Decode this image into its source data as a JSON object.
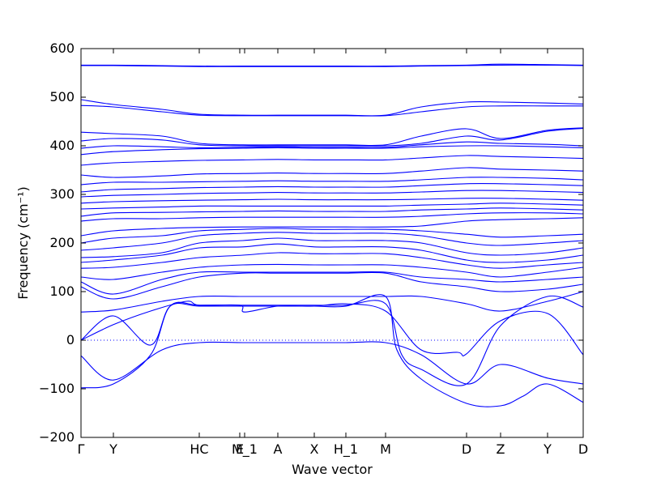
{
  "chart_data": {
    "type": "line",
    "title": "",
    "xlabel": "Wave vector",
    "ylabel": "Frequency (cm⁻¹)",
    "ylim": [
      -200,
      600
    ],
    "yticks": [
      -200,
      -100,
      0,
      100,
      200,
      300,
      400,
      500,
      600
    ],
    "xlim": [
      0,
      620
    ],
    "xticks": [
      {
        "label": "Γ",
        "x": 0
      },
      {
        "label": "Y",
        "x": 40
      },
      {
        "label": "HC",
        "x": 146
      },
      {
        "label": "E",
        "x": 196
      },
      {
        "label": "M_1",
        "x": 202
      },
      {
        "label": "A",
        "x": 243
      },
      {
        "label": "X",
        "x": 288
      },
      {
        "label": "H_1",
        "x": 327
      },
      {
        "label": "M",
        "x": 376
      },
      {
        "label": "D",
        "x": 476
      },
      {
        "label": "Z",
        "x": 518
      },
      {
        "label": "Y",
        "x": 576
      },
      {
        "label": "D",
        "x": 620
      }
    ],
    "zero_line": 0,
    "line_color": "#0000ff",
    "series": [
      {
        "x": [
          0,
          40,
          100,
          146,
          200,
          243,
          288,
          327,
          376,
          420,
          476,
          518,
          576,
          620
        ],
        "y": [
          -32,
          -82,
          -20,
          -5,
          -5,
          -5,
          -5,
          -5,
          -5,
          -30,
          -90,
          -50,
          -78,
          -90
        ]
      },
      {
        "x": [
          0,
          40,
          86,
          110,
          146,
          200,
          243,
          288,
          327,
          376,
          390,
          420,
          476,
          518,
          546,
          576,
          620
        ],
        "y": [
          0,
          50,
          -10,
          70,
          70,
          70,
          70,
          70,
          70,
          90,
          -20,
          -80,
          -130,
          -135,
          -115,
          -90,
          -128
        ]
      },
      {
        "x": [
          0,
          40,
          86,
          110,
          146,
          200,
          243,
          288,
          327,
          376,
          396,
          420,
          476,
          518,
          576,
          620
        ],
        "y": [
          -98,
          -90,
          -30,
          70,
          72,
          72,
          72,
          72,
          72,
          75,
          -30,
          -60,
          -90,
          30,
          90,
          68
        ]
      },
      {
        "x": [
          0,
          40,
          86,
          130,
          146,
          196,
          202,
          243,
          288,
          327,
          376,
          420,
          465,
          476,
          518,
          576,
          620
        ],
        "y": [
          0,
          32,
          60,
          80,
          72,
          72,
          58,
          70,
          70,
          75,
          60,
          -20,
          -25,
          -28,
          40,
          55,
          -30
        ]
      },
      {
        "x": [
          0,
          40,
          100,
          146,
          200,
          243,
          288,
          327,
          376,
          420,
          476,
          518,
          576,
          620
        ],
        "y": [
          58,
          62,
          80,
          90,
          90,
          90,
          90,
          90,
          90,
          90,
          75,
          60,
          80,
          100
        ]
      },
      {
        "x": [
          0,
          40,
          100,
          146,
          200,
          243,
          288,
          327,
          376,
          420,
          476,
          518,
          576,
          620
        ],
        "y": [
          110,
          85,
          110,
          130,
          138,
          138,
          138,
          138,
          138,
          120,
          110,
          100,
          105,
          115
        ]
      },
      {
        "x": [
          0,
          40,
          100,
          146,
          200,
          243,
          288,
          327,
          376,
          420,
          476,
          518,
          576,
          620
        ],
        "y": [
          120,
          95,
          125,
          140,
          140,
          140,
          140,
          140,
          140,
          130,
          125,
          120,
          125,
          130
        ]
      },
      {
        "x": [
          0,
          40,
          100,
          146,
          200,
          243,
          288,
          327,
          376,
          420,
          476,
          518,
          576,
          620
        ],
        "y": [
          130,
          125,
          140,
          150,
          155,
          156,
          155,
          155,
          155,
          150,
          140,
          130,
          140,
          150
        ]
      },
      {
        "x": [
          0,
          40,
          100,
          146,
          200,
          243,
          288,
          327,
          376,
          420,
          476,
          518,
          576,
          620
        ],
        "y": [
          148,
          150,
          160,
          170,
          175,
          180,
          178,
          178,
          178,
          170,
          155,
          148,
          155,
          160
        ]
      },
      {
        "x": [
          0,
          40,
          100,
          146,
          200,
          243,
          288,
          327,
          376,
          420,
          476,
          518,
          576,
          620
        ],
        "y": [
          160,
          165,
          175,
          190,
          192,
          198,
          192,
          192,
          192,
          185,
          165,
          160,
          165,
          175
        ]
      },
      {
        "x": [
          0,
          40,
          100,
          146,
          200,
          243,
          288,
          327,
          376,
          420,
          476,
          518,
          576,
          620
        ],
        "y": [
          170,
          172,
          180,
          200,
          205,
          210,
          205,
          205,
          205,
          200,
          180,
          175,
          180,
          190
        ]
      },
      {
        "x": [
          0,
          40,
          100,
          146,
          200,
          243,
          288,
          327,
          376,
          420,
          476,
          518,
          576,
          620
        ],
        "y": [
          185,
          190,
          200,
          215,
          220,
          222,
          220,
          220,
          220,
          215,
          200,
          195,
          200,
          205
        ]
      },
      {
        "x": [
          0,
          40,
          100,
          146,
          200,
          243,
          288,
          327,
          376,
          420,
          476,
          518,
          576,
          620
        ],
        "y": [
          200,
          210,
          215,
          225,
          228,
          230,
          228,
          228,
          228,
          225,
          218,
          212,
          215,
          218
        ]
      },
      {
        "x": [
          0,
          40,
          100,
          146,
          200,
          243,
          288,
          327,
          376,
          420,
          476,
          518,
          576,
          620
        ],
        "y": [
          215,
          225,
          230,
          232,
          233,
          233,
          233,
          233,
          233,
          235,
          245,
          248,
          250,
          252
        ]
      },
      {
        "x": [
          0,
          40,
          100,
          146,
          200,
          243,
          288,
          327,
          376,
          420,
          476,
          518,
          576,
          620
        ],
        "y": [
          245,
          250,
          250,
          252,
          253,
          253,
          253,
          253,
          253,
          255,
          260,
          262,
          262,
          260
        ]
      },
      {
        "x": [
          0,
          40,
          100,
          146,
          200,
          243,
          288,
          327,
          376,
          420,
          476,
          518,
          576,
          620
        ],
        "y": [
          255,
          262,
          263,
          264,
          265,
          266,
          265,
          265,
          265,
          268,
          270,
          272,
          270,
          268
        ]
      },
      {
        "x": [
          0,
          40,
          100,
          146,
          200,
          243,
          288,
          327,
          376,
          420,
          476,
          518,
          576,
          620
        ],
        "y": [
          270,
          272,
          274,
          276,
          276,
          276,
          276,
          276,
          276,
          278,
          280,
          282,
          280,
          278
        ]
      },
      {
        "x": [
          0,
          40,
          100,
          146,
          200,
          243,
          288,
          327,
          376,
          420,
          476,
          518,
          576,
          620
        ],
        "y": [
          282,
          285,
          287,
          288,
          289,
          290,
          289,
          289,
          289,
          290,
          292,
          292,
          290,
          288
        ]
      },
      {
        "x": [
          0,
          40,
          100,
          146,
          200,
          243,
          288,
          327,
          376,
          420,
          476,
          518,
          576,
          620
        ],
        "y": [
          295,
          298,
          300,
          302,
          303,
          304,
          303,
          303,
          303,
          305,
          308,
          308,
          306,
          304
        ]
      },
      {
        "x": [
          0,
          40,
          100,
          146,
          200,
          243,
          288,
          327,
          376,
          420,
          476,
          518,
          576,
          620
        ],
        "y": [
          305,
          310,
          312,
          314,
          315,
          316,
          315,
          315,
          315,
          318,
          322,
          322,
          320,
          318
        ]
      },
      {
        "x": [
          0,
          40,
          100,
          146,
          200,
          243,
          288,
          327,
          376,
          420,
          476,
          518,
          576,
          620
        ],
        "y": [
          320,
          325,
          325,
          326,
          327,
          328,
          327,
          327,
          327,
          330,
          335,
          335,
          333,
          330
        ]
      },
      {
        "x": [
          0,
          40,
          100,
          146,
          200,
          243,
          288,
          327,
          376,
          420,
          476,
          518,
          576,
          620
        ],
        "y": [
          340,
          335,
          338,
          342,
          343,
          344,
          343,
          343,
          343,
          348,
          355,
          352,
          350,
          348
        ]
      },
      {
        "x": [
          0,
          40,
          100,
          146,
          200,
          243,
          288,
          327,
          376,
          420,
          476,
          518,
          576,
          620
        ],
        "y": [
          360,
          365,
          368,
          370,
          371,
          372,
          371,
          371,
          371,
          375,
          380,
          378,
          376,
          374
        ]
      },
      {
        "x": [
          0,
          40,
          100,
          146,
          200,
          243,
          288,
          327,
          376,
          420,
          476,
          518,
          576,
          620
        ],
        "y": [
          382,
          388,
          392,
          394,
          395,
          396,
          395,
          395,
          395,
          398,
          400,
          400,
          398,
          396
        ]
      },
      {
        "x": [
          0,
          40,
          100,
          146,
          200,
          243,
          288,
          327,
          376,
          420,
          476,
          518,
          576,
          620
        ],
        "y": [
          395,
          400,
          398,
          396,
          397,
          398,
          397,
          397,
          397,
          402,
          408,
          405,
          403,
          400
        ]
      },
      {
        "x": [
          0,
          40,
          100,
          146,
          200,
          243,
          288,
          327,
          376,
          420,
          476,
          518,
          576,
          620
        ],
        "y": [
          410,
          415,
          412,
          402,
          400,
          400,
          400,
          400,
          400,
          405,
          420,
          412,
          430,
          436
        ]
      },
      {
        "x": [
          0,
          40,
          100,
          146,
          200,
          243,
          288,
          327,
          376,
          420,
          476,
          518,
          576,
          620
        ],
        "y": [
          428,
          425,
          420,
          405,
          402,
          402,
          402,
          402,
          402,
          420,
          435,
          415,
          432,
          437
        ]
      },
      {
        "x": [
          0,
          40,
          100,
          146,
          200,
          243,
          288,
          327,
          376,
          420,
          476,
          518,
          576,
          620
        ],
        "y": [
          483,
          480,
          470,
          463,
          462,
          462,
          462,
          462,
          462,
          470,
          480,
          482,
          482,
          482
        ]
      },
      {
        "x": [
          0,
          40,
          100,
          146,
          200,
          243,
          288,
          327,
          376,
          420,
          476,
          518,
          576,
          620
        ],
        "y": [
          495,
          485,
          475,
          465,
          463,
          463,
          463,
          463,
          463,
          480,
          490,
          490,
          488,
          486
        ]
      },
      {
        "x": [
          0,
          40,
          100,
          146,
          200,
          243,
          288,
          327,
          376,
          420,
          476,
          518,
          576,
          620
        ],
        "y": [
          565,
          565,
          564,
          563,
          563,
          563,
          563,
          563,
          563,
          564,
          565,
          566,
          566,
          565
        ]
      },
      {
        "x": [
          0,
          40,
          100,
          146,
          200,
          243,
          288,
          327,
          376,
          420,
          476,
          518,
          576,
          620
        ],
        "y": [
          566,
          566,
          565,
          564,
          564,
          564,
          564,
          564,
          564,
          565,
          566,
          568,
          567,
          566
        ]
      }
    ]
  }
}
